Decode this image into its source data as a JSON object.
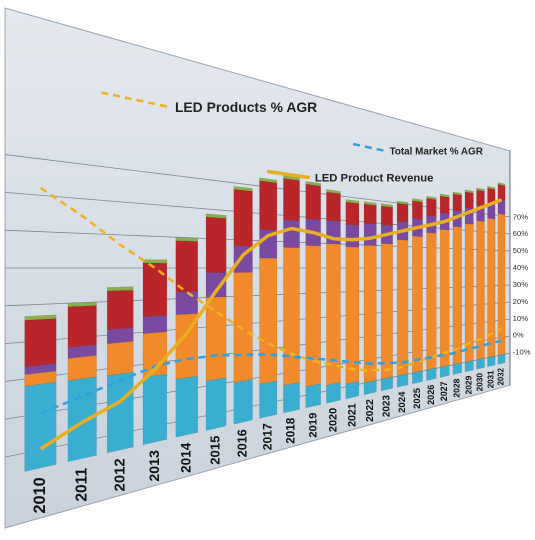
{
  "chart_data": {
    "type": "bar",
    "categories": [
      "2010",
      "2011",
      "2012",
      "2013",
      "2014",
      "2015",
      "2016",
      "2017",
      "2018",
      "2019",
      "2020",
      "2021",
      "2022",
      "2023",
      "2024",
      "2025",
      "2026",
      "2027",
      "2028",
      "2029",
      "2030",
      "2031",
      "2032"
    ],
    "series": [
      {
        "color": "#3aaed0",
        "values": [
          22,
          22,
          22,
          20,
          18,
          16,
          14,
          12,
          10,
          8,
          7,
          6,
          5,
          5,
          5,
          5,
          5,
          5,
          5,
          5,
          5,
          5,
          5
        ]
      },
      {
        "color": "#f08a2a",
        "values": [
          3,
          6,
          9,
          13,
          20,
          27,
          37,
          44,
          50,
          53,
          55,
          55,
          57,
          58,
          60,
          62,
          64,
          66,
          68,
          70,
          72,
          74,
          77
        ]
      },
      {
        "color": "#7a4aa0",
        "values": [
          2,
          3,
          4,
          5,
          7,
          8,
          9,
          10,
          10,
          10,
          9,
          9,
          9,
          8,
          8,
          8,
          8,
          8,
          8,
          8,
          8,
          8,
          8
        ]
      },
      {
        "color": "#b8262a",
        "values": [
          12,
          11,
          11,
          16,
          16,
          18,
          19,
          17,
          15,
          13,
          11,
          9,
          8,
          8,
          8,
          8,
          8,
          8,
          8,
          8,
          8,
          8,
          8
        ]
      },
      {
        "color": "#8ab04a",
        "values": [
          1,
          1,
          1,
          1,
          1,
          1,
          1,
          1,
          1,
          1,
          1,
          1,
          1,
          1,
          1,
          1,
          1,
          1,
          1,
          1,
          1,
          1,
          1
        ]
      },
      {
        "type": "line",
        "name": "LED Products % AGR",
        "color": "#f0b020",
        "dashed": true,
        "axis": "y2",
        "values": [
          62,
          55,
          47,
          40,
          32,
          25,
          18,
          12,
          7,
          3,
          0,
          -3,
          -5,
          -6,
          -6,
          -5,
          -4,
          -3,
          -2,
          0,
          1,
          3,
          5
        ]
      },
      {
        "type": "line",
        "name": "Total Market % AGR",
        "color": "#30a0e0",
        "dashed": true,
        "axis": "y2",
        "values": [
          0,
          3,
          6,
          9,
          10,
          10,
          9,
          8,
          6,
          4,
          2,
          0,
          -2,
          -3,
          -4,
          -4,
          -4,
          -4,
          -4,
          -3,
          -3,
          -2,
          -2
        ]
      },
      {
        "type": "line",
        "name": "LED Product Revenue",
        "color": "#e8b020",
        "dashed": false,
        "values": [
          5,
          10,
          14,
          22,
          32,
          45,
          57,
          64,
          67,
          66,
          64,
          64,
          65,
          67,
          69,
          71,
          73,
          75,
          78,
          81,
          84,
          87,
          90
        ]
      }
    ],
    "ylim": [
      0,
      105
    ],
    "y2lim": [
      -15,
      95
    ],
    "y2ticks": [
      {
        "value": -10,
        "label": "-10%"
      },
      {
        "value": 0,
        "label": "0%"
      },
      {
        "value": 10,
        "label": "10%"
      },
      {
        "value": 20,
        "label": "20%"
      },
      {
        "value": 30,
        "label": "30%"
      },
      {
        "value": 40,
        "label": "40%"
      },
      {
        "value": 50,
        "label": "50%"
      },
      {
        "value": 60,
        "label": "60%"
      },
      {
        "value": 70,
        "label": "70%"
      }
    ],
    "grid": true
  }
}
